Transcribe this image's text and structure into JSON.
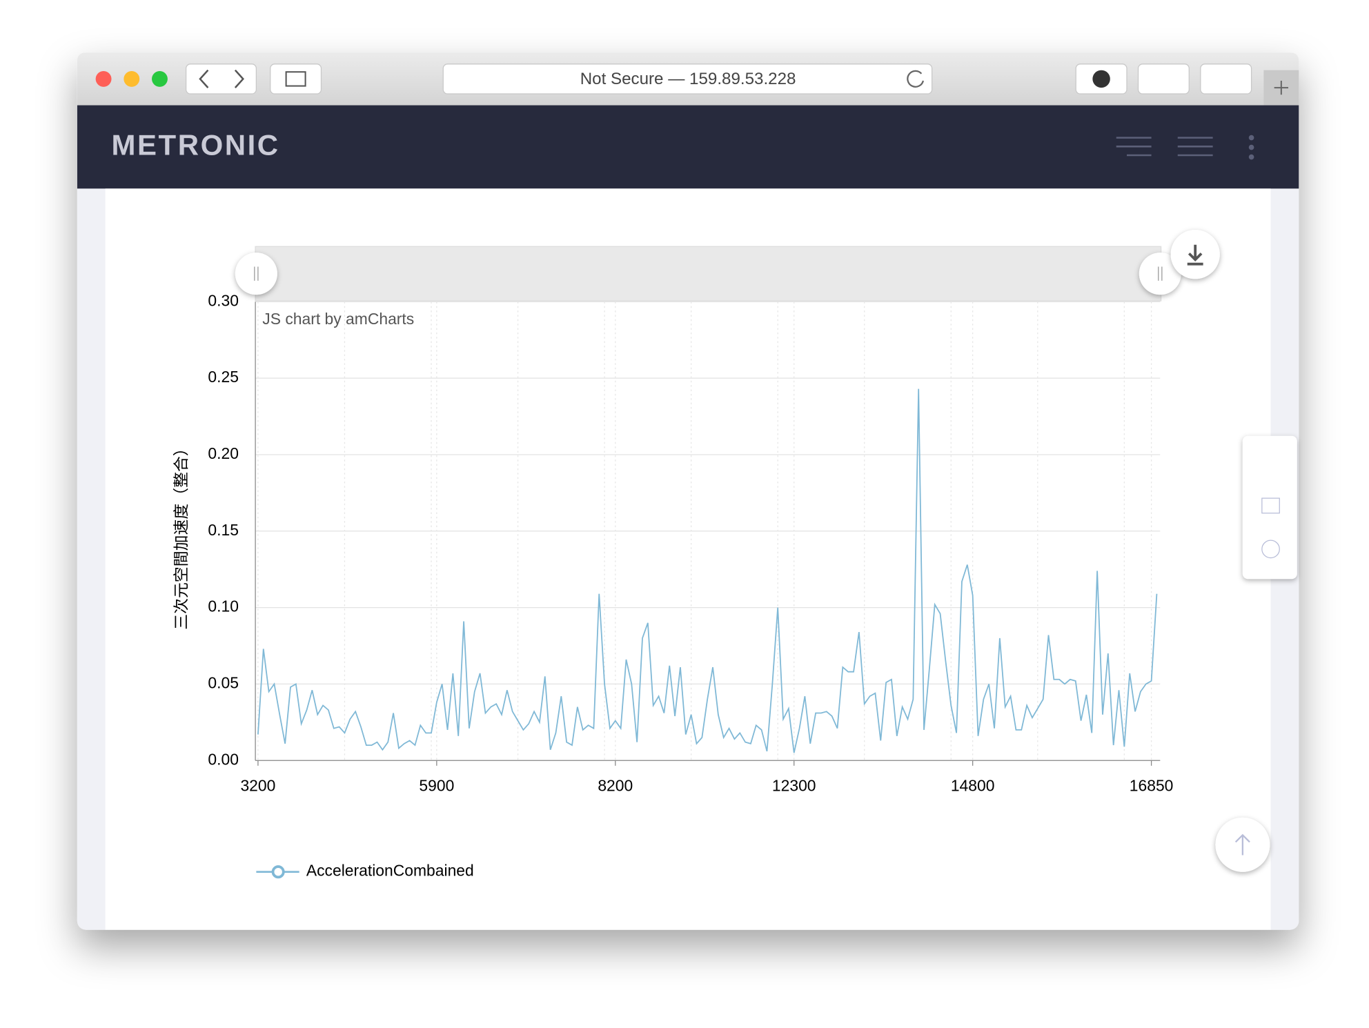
{
  "browser": {
    "address": "Not Secure — 159.89.53.228"
  },
  "header": {
    "brand": "METRONIC"
  },
  "chart_data": {
    "type": "line",
    "credit": "JS chart by amCharts",
    "y_label": "三次元空間加速度（整合）",
    "categories": [
      "3200",
      null,
      null,
      null,
      null,
      null,
      null,
      null,
      null,
      null,
      null,
      null,
      null,
      null,
      null,
      null,
      null,
      null,
      null,
      null,
      null,
      null,
      null,
      null,
      null,
      null,
      null,
      null,
      null,
      null,
      null,
      null,
      null,
      "5900",
      null,
      null,
      null,
      null,
      null,
      null,
      null,
      null,
      null,
      null,
      null,
      null,
      null,
      null,
      null,
      null,
      null,
      null,
      null,
      null,
      null,
      null,
      null,
      null,
      null,
      null,
      null,
      null,
      null,
      null,
      null,
      null,
      "8200",
      null,
      null,
      null,
      null,
      null,
      null,
      null,
      null,
      null,
      null,
      null,
      null,
      null,
      null,
      null,
      null,
      null,
      null,
      null,
      null,
      null,
      null,
      null,
      null,
      null,
      null,
      null,
      null,
      null,
      null,
      null,
      null,
      "12300",
      null,
      null,
      null,
      null,
      null,
      null,
      null,
      null,
      null,
      null,
      null,
      null,
      null,
      null,
      null,
      null,
      null,
      null,
      null,
      null,
      null,
      null,
      null,
      null,
      null,
      null,
      null,
      null,
      null,
      null,
      null,
      null,
      "14800",
      null,
      null,
      null,
      null,
      null,
      null,
      null,
      null,
      null,
      null,
      null,
      null,
      null,
      null,
      null,
      null,
      null,
      null,
      null,
      null,
      null,
      null,
      null,
      null,
      null,
      null,
      null,
      null,
      null,
      null,
      null,
      null,
      "16850",
      null
    ],
    "series": [
      {
        "name": "AccelerationCombained",
        "color": "#7fb8d6",
        "values": [
          0.017,
          0.073,
          0.045,
          0.05,
          0.03,
          0.011,
          0.048,
          0.05,
          0.024,
          0.033,
          0.046,
          0.03,
          0.036,
          0.033,
          0.021,
          0.022,
          0.018,
          0.027,
          0.032,
          0.022,
          0.01,
          0.01,
          0.012,
          0.007,
          0.012,
          0.031,
          0.008,
          0.011,
          0.013,
          0.01,
          0.023,
          0.018,
          0.018,
          0.038,
          0.05,
          0.02,
          0.057,
          0.016,
          0.091,
          0.021,
          0.045,
          0.057,
          0.031,
          0.035,
          0.037,
          0.03,
          0.046,
          0.032,
          0.026,
          0.02,
          0.024,
          0.032,
          0.025,
          0.055,
          0.007,
          0.018,
          0.042,
          0.012,
          0.01,
          0.035,
          0.02,
          0.023,
          0.021,
          0.109,
          0.05,
          0.021,
          0.026,
          0.021,
          0.066,
          0.05,
          0.012,
          0.08,
          0.09,
          0.036,
          0.042,
          0.031,
          0.062,
          0.029,
          0.061,
          0.017,
          0.03,
          0.011,
          0.015,
          0.04,
          0.061,
          0.03,
          0.015,
          0.021,
          0.014,
          0.018,
          0.012,
          0.011,
          0.023,
          0.02,
          0.006,
          0.05,
          0.1,
          0.027,
          0.034,
          0.005,
          0.021,
          0.042,
          0.011,
          0.031,
          0.031,
          0.032,
          0.029,
          0.021,
          0.061,
          0.058,
          0.058,
          0.084,
          0.037,
          0.042,
          0.044,
          0.013,
          0.051,
          0.053,
          0.016,
          0.035,
          0.027,
          0.04,
          0.243,
          0.02,
          0.06,
          0.102,
          0.096,
          0.065,
          0.036,
          0.018,
          0.117,
          0.128,
          0.108,
          0.016,
          0.04,
          0.05,
          0.021,
          0.08,
          0.035,
          0.042,
          0.02,
          0.02,
          0.036,
          0.028,
          0.034,
          0.04,
          0.082,
          0.053,
          0.053,
          0.05,
          0.053,
          0.052,
          0.026,
          0.043,
          0.018,
          0.124,
          0.03,
          0.07,
          0.01,
          0.046,
          0.009,
          0.057,
          0.032,
          0.045,
          0.05,
          0.052,
          0.109
        ]
      }
    ],
    "ylim": [
      0,
      0.3
    ],
    "yticks": [
      {
        "value": 0,
        "label": "0.00"
      },
      0.05,
      {
        "value": 0.1,
        "label": "0.10"
      },
      0.15,
      {
        "value": 0.2,
        "label": "0.20"
      },
      0.25,
      {
        "value": 0.3,
        "label": "0.30"
      }
    ],
    "grid": true
  }
}
